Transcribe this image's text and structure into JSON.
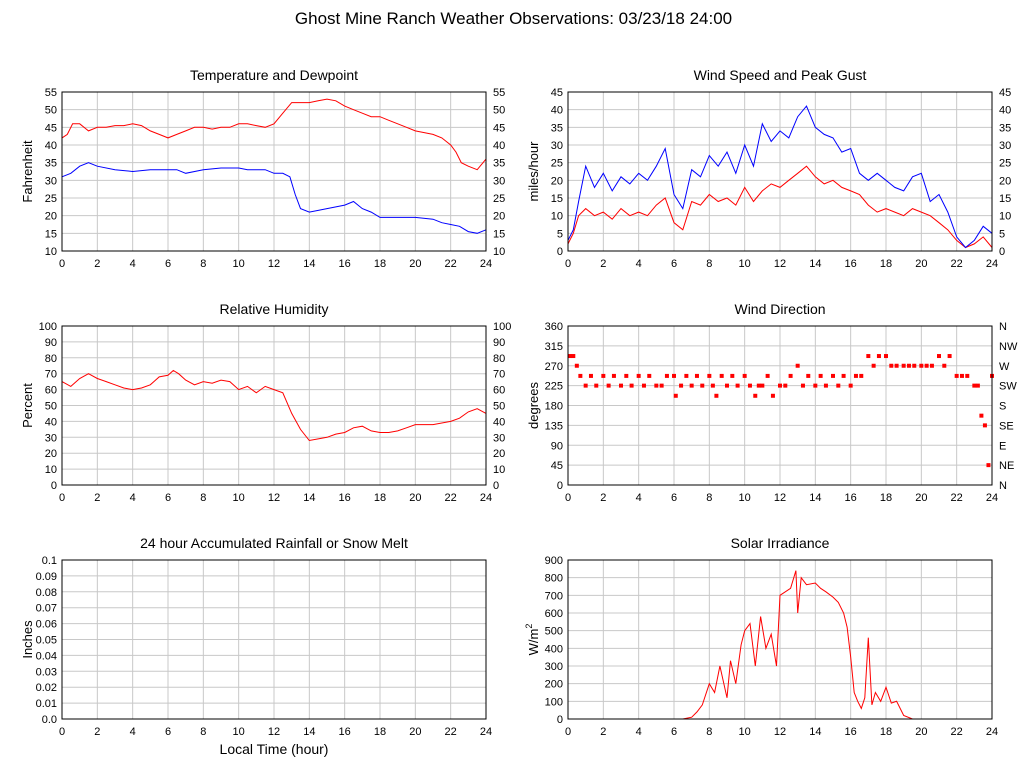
{
  "page_title": "Ghost Mine Ranch Weather Observations: 03/23/18 24:00",
  "shared_xlabel": "Local Time (hour)",
  "chart_data": [
    {
      "id": "temp",
      "type": "line",
      "title": "Temperature and Dewpoint",
      "xlabel": "",
      "ylabel": "Fahrenheit",
      "xlim": [
        0,
        24
      ],
      "ylim": [
        10,
        55
      ],
      "xticks": [
        0,
        2,
        4,
        6,
        8,
        10,
        12,
        14,
        16,
        18,
        20,
        22,
        24
      ],
      "yticks": [
        10,
        15,
        20,
        25,
        30,
        35,
        40,
        45,
        50,
        55
      ],
      "yticklabels": [
        "10",
        "15",
        "20",
        "25",
        "30",
        "35",
        "40",
        "45",
        "50",
        "55"
      ],
      "right_ticks": true,
      "grid": true,
      "series": [
        {
          "color": "#ff0000",
          "x": [
            0,
            0.3,
            0.6,
            1,
            1.5,
            2,
            2.5,
            3,
            3.5,
            4,
            4.5,
            5,
            5.5,
            6,
            6.5,
            7,
            7.5,
            8,
            8.5,
            9,
            9.5,
            10,
            10.5,
            11,
            11.5,
            12,
            12.5,
            13,
            13.5,
            14,
            14.5,
            15,
            15.5,
            16,
            16.5,
            17,
            17.5,
            18,
            18.5,
            19,
            19.5,
            20,
            20.5,
            21,
            21.5,
            22,
            22.3,
            22.6,
            23,
            23.5,
            24
          ],
          "y": [
            42,
            43,
            46,
            46,
            44,
            45,
            45,
            45.5,
            45.5,
            46,
            45.5,
            44,
            43,
            42,
            43,
            44,
            45,
            45,
            44.5,
            45,
            45,
            46,
            46,
            45.5,
            45,
            46,
            49,
            52,
            52,
            52,
            52.5,
            53,
            52.5,
            51,
            50,
            49,
            48,
            48,
            47,
            46,
            45,
            44,
            43.5,
            43,
            42,
            40,
            38,
            35,
            34,
            33,
            36
          ]
        },
        {
          "color": "#0000ff",
          "x": [
            0,
            0.5,
            1,
            1.5,
            2,
            3,
            4,
            5,
            6,
            6.5,
            7,
            8,
            9,
            10,
            10.5,
            11,
            11.5,
            12,
            12.5,
            12.9,
            13.2,
            13.5,
            14,
            14.5,
            15,
            16,
            16.5,
            17,
            17.5,
            18,
            19,
            20,
            21,
            21.5,
            22,
            22.5,
            23,
            23.5,
            24
          ],
          "y": [
            31,
            32,
            34,
            35,
            34,
            33,
            32.5,
            33,
            33,
            33,
            32,
            33,
            33.5,
            33.5,
            33,
            33,
            33,
            32,
            32,
            31,
            26,
            22,
            21,
            21.5,
            22,
            23,
            24,
            22,
            21,
            19.5,
            19.5,
            19.5,
            19,
            18,
            17.5,
            17,
            15.5,
            15,
            16
          ]
        }
      ]
    },
    {
      "id": "wind",
      "type": "line",
      "title": "Wind Speed and Peak Gust",
      "xlabel": "",
      "ylabel": "miles/hour",
      "xlim": [
        0,
        24
      ],
      "ylim": [
        0,
        45
      ],
      "xticks": [
        0,
        2,
        4,
        6,
        8,
        10,
        12,
        14,
        16,
        18,
        20,
        22,
        24
      ],
      "yticks": [
        0,
        5,
        10,
        15,
        20,
        25,
        30,
        35,
        40,
        45
      ],
      "yticklabels": [
        "0",
        "5",
        "10",
        "15",
        "20",
        "25",
        "30",
        "35",
        "40",
        "45"
      ],
      "right_ticks": true,
      "grid": true,
      "series": [
        {
          "color": "#ff0000",
          "x": [
            0,
            0.3,
            0.6,
            1,
            1.5,
            2,
            2.5,
            3,
            3.5,
            4,
            4.5,
            5,
            5.5,
            6,
            6.5,
            7,
            7.5,
            8,
            8.5,
            9,
            9.5,
            10,
            10.5,
            11,
            11.5,
            12,
            12.5,
            13,
            13.5,
            14,
            14.5,
            15,
            15.5,
            16,
            16.5,
            17,
            17.5,
            18,
            18.5,
            19,
            19.5,
            20,
            20.5,
            21,
            21.5,
            22,
            22.5,
            23,
            23.5,
            24
          ],
          "y": [
            2,
            5,
            10,
            12,
            10,
            11,
            9,
            12,
            10,
            11,
            10,
            13,
            15,
            8,
            6,
            14,
            13,
            16,
            14,
            15,
            13,
            18,
            14,
            17,
            19,
            18,
            20,
            22,
            24,
            21,
            19,
            20,
            18,
            17,
            16,
            13,
            11,
            12,
            11,
            10,
            12,
            11,
            10,
            8,
            6,
            3,
            1,
            2,
            4,
            1
          ]
        },
        {
          "color": "#0000ff",
          "x": [
            0,
            0.3,
            0.6,
            1,
            1.5,
            2,
            2.5,
            3,
            3.5,
            4,
            4.5,
            5,
            5.5,
            6,
            6.5,
            7,
            7.5,
            8,
            8.5,
            9,
            9.5,
            10,
            10.5,
            11,
            11.5,
            12,
            12.5,
            13,
            13.5,
            14,
            14.5,
            15,
            15.5,
            16,
            16.5,
            17,
            17.5,
            18,
            18.5,
            19,
            19.5,
            20,
            20.5,
            21,
            21.5,
            22,
            22.5,
            23,
            23.5,
            24
          ],
          "y": [
            3,
            6,
            14,
            24,
            18,
            22,
            17,
            21,
            19,
            22,
            20,
            24,
            29,
            16,
            12,
            23,
            21,
            27,
            24,
            28,
            22,
            30,
            24,
            36,
            31,
            34,
            32,
            38,
            41,
            35,
            33,
            32,
            28,
            29,
            22,
            20,
            22,
            20,
            18,
            17,
            21,
            22,
            14,
            16,
            11,
            4,
            1,
            3,
            7,
            5
          ]
        }
      ]
    },
    {
      "id": "rh",
      "type": "line",
      "title": "Relative Humidity",
      "xlabel": "",
      "ylabel": "Percent",
      "xlim": [
        0,
        24
      ],
      "ylim": [
        0,
        100
      ],
      "xticks": [
        0,
        2,
        4,
        6,
        8,
        10,
        12,
        14,
        16,
        18,
        20,
        22,
        24
      ],
      "yticks": [
        0,
        10,
        20,
        30,
        40,
        50,
        60,
        70,
        80,
        90,
        100
      ],
      "yticklabels": [
        "0",
        "10",
        "20",
        "30",
        "40",
        "50",
        "60",
        "70",
        "80",
        "90",
        "100"
      ],
      "right_ticks": true,
      "grid": true,
      "series": [
        {
          "color": "#ff0000",
          "x": [
            0,
            0.5,
            1,
            1.5,
            2,
            2.5,
            3,
            3.5,
            4,
            4.5,
            5,
            5.5,
            6,
            6.3,
            6.6,
            7,
            7.5,
            8,
            8.5,
            9,
            9.5,
            10,
            10.5,
            11,
            11.5,
            12,
            12.5,
            13,
            13.5,
            14,
            14.5,
            15,
            15.5,
            16,
            16.5,
            17,
            17.5,
            18,
            18.5,
            19,
            19.5,
            20,
            20.5,
            21,
            21.5,
            22,
            22.5,
            23,
            23.5,
            24
          ],
          "y": [
            65,
            62,
            67,
            70,
            67,
            65,
            63,
            61,
            60,
            61,
            63,
            68,
            69,
            72,
            70,
            66,
            63,
            65,
            64,
            66,
            65,
            60,
            62,
            58,
            62,
            60,
            58,
            45,
            35,
            28,
            29,
            30,
            32,
            33,
            36,
            37,
            34,
            33,
            33,
            34,
            36,
            38,
            38,
            38,
            39,
            40,
            42,
            46,
            48,
            45
          ]
        }
      ]
    },
    {
      "id": "wdir",
      "type": "scatter",
      "title": "Wind Direction",
      "xlabel": "",
      "ylabel": "degrees",
      "xlim": [
        0,
        24
      ],
      "ylim": [
        0,
        360
      ],
      "xticks": [
        0,
        2,
        4,
        6,
        8,
        10,
        12,
        14,
        16,
        18,
        20,
        22,
        24
      ],
      "yticks": [
        0,
        45,
        90,
        135,
        180,
        225,
        270,
        315,
        360
      ],
      "yticklabels": [
        "0",
        "45",
        "90",
        "135",
        "180",
        "225",
        "270",
        "315",
        "360"
      ],
      "right_ticklabels": [
        "N",
        "NE",
        "E",
        "SE",
        "S",
        "SW",
        "W",
        "NW",
        "N"
      ],
      "right_ticks": true,
      "grid": true,
      "series": [
        {
          "color": "#ff0000",
          "x": [
            0.1,
            0.3,
            0.5,
            0.7,
            1,
            1.3,
            1.6,
            2,
            2.3,
            2.6,
            3,
            3.3,
            3.6,
            4,
            4.3,
            4.6,
            5,
            5.3,
            5.6,
            6,
            6.1,
            6.4,
            6.7,
            7,
            7.3,
            7.6,
            8,
            8.2,
            8.4,
            8.7,
            9,
            9.3,
            9.6,
            10,
            10.3,
            10.6,
            10.8,
            11,
            11.3,
            11.6,
            12,
            12.3,
            12.6,
            13,
            13.3,
            13.6,
            14,
            14.3,
            14.6,
            15,
            15.3,
            15.6,
            16,
            16.3,
            16.6,
            17,
            17.3,
            17.6,
            18,
            18.3,
            18.6,
            19,
            19.3,
            19.6,
            20,
            20.3,
            20.6,
            21,
            21.3,
            21.6,
            22,
            22.3,
            22.6,
            23,
            23.2,
            23.4,
            23.6,
            23.8,
            24
          ],
          "y": [
            292,
            292,
            270,
            247,
            225,
            247,
            225,
            247,
            225,
            247,
            225,
            247,
            225,
            247,
            225,
            247,
            225,
            225,
            247,
            247,
            202,
            225,
            247,
            225,
            247,
            225,
            247,
            225,
            202,
            247,
            225,
            247,
            225,
            247,
            225,
            202,
            225,
            225,
            247,
            202,
            225,
            225,
            247,
            270,
            225,
            247,
            225,
            247,
            225,
            247,
            225,
            247,
            225,
            247,
            247,
            292,
            270,
            292,
            292,
            270,
            270,
            270,
            270,
            270,
            270,
            270,
            270,
            292,
            270,
            292,
            247,
            247,
            247,
            225,
            225,
            157,
            135,
            45,
            247
          ]
        }
      ]
    },
    {
      "id": "rain",
      "type": "line",
      "title": "24 hour Accumulated Rainfall or Snow Melt",
      "xlabel": "Local Time (hour)",
      "ylabel": "Inches",
      "xlim": [
        0,
        24
      ],
      "ylim": [
        0,
        0.1
      ],
      "xticks": [
        0,
        2,
        4,
        6,
        8,
        10,
        12,
        14,
        16,
        18,
        20,
        22,
        24
      ],
      "yticks": [
        0,
        0.01,
        0.02,
        0.03,
        0.04,
        0.05,
        0.06,
        0.07,
        0.08,
        0.09,
        0.1
      ],
      "yticklabels": [
        "0.0",
        "0.01",
        "0.02",
        "0.03",
        "0.04",
        "0.05",
        "0.06",
        "0.07",
        "0.08",
        "0.09",
        "0.1"
      ],
      "right_ticks": false,
      "grid": true,
      "series": [
        {
          "color": "#ff0000",
          "x": [
            0,
            24
          ],
          "y": [
            0,
            0
          ]
        }
      ]
    },
    {
      "id": "solar",
      "type": "line",
      "title": "Solar Irradiance",
      "xlabel": "",
      "ylabel": "W/m",
      "ylabel_sup": "2",
      "xlim": [
        0,
        24
      ],
      "ylim": [
        0,
        900
      ],
      "xticks": [
        0,
        2,
        4,
        6,
        8,
        10,
        12,
        14,
        16,
        18,
        20,
        22,
        24
      ],
      "yticks": [
        0,
        100,
        200,
        300,
        400,
        500,
        600,
        700,
        800,
        900
      ],
      "yticklabels": [
        "0",
        "100",
        "200",
        "300",
        "400",
        "500",
        "600",
        "700",
        "800",
        "900"
      ],
      "right_ticks": false,
      "grid": true,
      "series": [
        {
          "color": "#ff0000",
          "x": [
            0,
            6.5,
            7,
            7.3,
            7.6,
            8,
            8.3,
            8.6,
            9,
            9.2,
            9.5,
            9.8,
            10,
            10.3,
            10.6,
            10.9,
            11.2,
            11.5,
            11.8,
            12,
            12.3,
            12.6,
            12.9,
            13,
            13.2,
            13.5,
            14,
            14.3,
            14.6,
            15,
            15.3,
            15.6,
            15.8,
            16,
            16.2,
            16.4,
            16.6,
            16.8,
            17,
            17.2,
            17.4,
            17.7,
            18,
            18.3,
            18.6,
            19,
            19.5,
            24
          ],
          "y": [
            0,
            0,
            10,
            40,
            80,
            200,
            150,
            300,
            120,
            330,
            200,
            420,
            500,
            540,
            300,
            580,
            400,
            480,
            300,
            700,
            720,
            740,
            840,
            600,
            800,
            760,
            770,
            740,
            720,
            690,
            660,
            600,
            520,
            350,
            150,
            100,
            60,
            120,
            460,
            80,
            150,
            100,
            180,
            90,
            100,
            20,
            0,
            0
          ]
        }
      ]
    }
  ]
}
